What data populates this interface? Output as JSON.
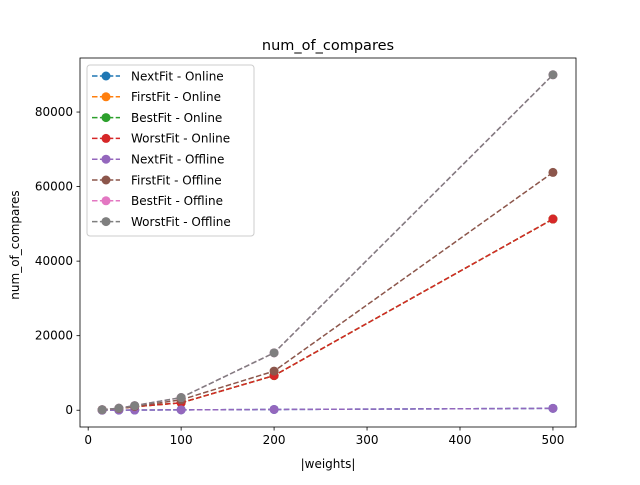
{
  "chart_data": {
    "type": "line",
    "title": "num_of_compares",
    "xlabel": "|weights|",
    "ylabel": "num_of_compares",
    "xlim": [
      -8.8,
      524.8
    ],
    "ylim": [
      -4500,
      94500
    ],
    "xticks": [
      0,
      100,
      200,
      300,
      400,
      500
    ],
    "yticks": [
      0,
      20000,
      40000,
      60000,
      80000
    ],
    "grid": false,
    "legend_position": "top-left",
    "line_style": "dashed",
    "marker": "circle",
    "x": [
      15,
      33,
      50,
      100,
      200,
      500
    ],
    "series": [
      {
        "name": "NextFit - Online",
        "color": "#1f77b4",
        "values": [
          14,
          32,
          49,
          99,
          199,
          499
        ]
      },
      {
        "name": "FirstFit - Online",
        "color": "#ff7f0e",
        "values": [
          110,
          420,
          950,
          2000,
          9300,
          51300
        ]
      },
      {
        "name": "BestFit - Online",
        "color": "#2ca02c",
        "values": [
          110,
          420,
          950,
          2000,
          9300,
          51300
        ]
      },
      {
        "name": "WorstFit - Online",
        "color": "#d62728",
        "values": [
          110,
          420,
          950,
          2000,
          9300,
          51300
        ]
      },
      {
        "name": "NextFit - Offline",
        "color": "#9467bd",
        "values": [
          14,
          32,
          49,
          99,
          199,
          499
        ]
      },
      {
        "name": "FirstFit - Offline",
        "color": "#8c564b",
        "values": [
          120,
          460,
          1000,
          2800,
          10500,
          63800
        ]
      },
      {
        "name": "BestFit - Offline",
        "color": "#e377c2",
        "values": [
          150,
          550,
          1250,
          3400,
          15400,
          90000
        ]
      },
      {
        "name": "WorstFit - Offline",
        "color": "#7f7f7f",
        "values": [
          150,
          550,
          1250,
          3400,
          15400,
          90000
        ]
      }
    ]
  }
}
